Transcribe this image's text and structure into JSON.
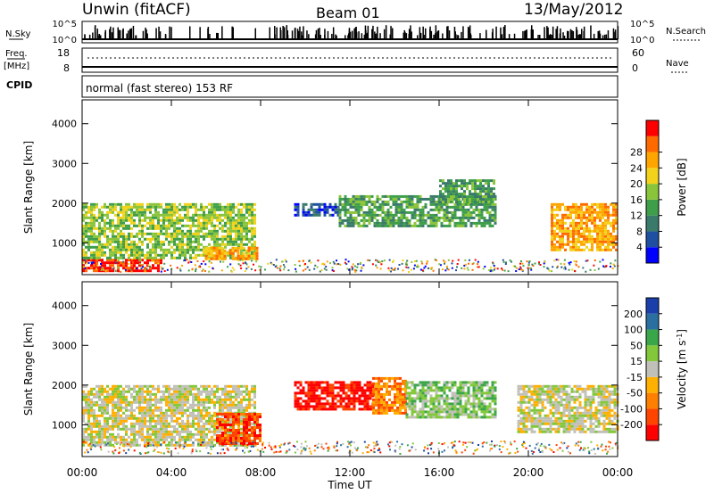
{
  "header": {
    "station": "Unwin (fitACF)",
    "beam": "Beam 01",
    "date": "13/May/2012"
  },
  "left_labels": {
    "nsky": "N.Sky",
    "freq": "Freq.",
    "freq_unit": "[MHz]",
    "cpid": "CPID"
  },
  "right_labels": {
    "nsearch": "N.Search",
    "nave": "Nave"
  },
  "strip_ticks": {
    "noise_top": "10^5",
    "noise_bottom": "10^0",
    "freq_top": "18",
    "freq_bottom": "8",
    "nave_top": "60",
    "nave_bottom": "0",
    "noise_right_top": "10^5",
    "noise_right_bottom": "10^0"
  },
  "cpid_text": "normal (fast stereo) 153 RF",
  "colors": {
    "power": [
      "#0000ff",
      "#1f4fa0",
      "#3a7a6b",
      "#3e9e4a",
      "#8ac43a",
      "#f2d21a",
      "#ffa500",
      "#ff6a00",
      "#ff0000"
    ],
    "velocity": [
      "#ff0000",
      "#ff4400",
      "#ff8000",
      "#ffb000",
      "#c0c0b8",
      "#82c83a",
      "#3aa64a",
      "#2a6fa0",
      "#1a3faa"
    ]
  },
  "chart_data": [
    {
      "type": "heatmap",
      "title": "",
      "xlabel": "Time UT",
      "ylabel": "Slant Range [km]",
      "x_ticks": [
        "00:00",
        "04:00",
        "08:00",
        "12:00",
        "16:00",
        "20:00",
        "00:00"
      ],
      "y_ticks": [
        "1000",
        "2000",
        "3000",
        "4000"
      ],
      "ylim": [
        200,
        4600
      ],
      "colorbar": {
        "label": "Power [dB]",
        "ticks": [
          "4",
          "8",
          "12",
          "16",
          "20",
          "24",
          "28"
        ],
        "range": [
          0,
          32
        ]
      },
      "regions": [
        {
          "t_start": 0.0,
          "t_end": 3.5,
          "r_low": 300,
          "r_high": 600,
          "level": 30
        },
        {
          "t_start": 0.0,
          "t_end": 7.8,
          "r_low": 600,
          "r_high": 2000,
          "level": 16
        },
        {
          "t_start": 5.5,
          "t_end": 7.8,
          "r_low": 600,
          "r_high": 900,
          "level": 22
        },
        {
          "t_start": 9.5,
          "t_end": 11.5,
          "r_low": 1700,
          "r_high": 2000,
          "level": 6
        },
        {
          "t_start": 11.5,
          "t_end": 18.5,
          "r_low": 1400,
          "r_high": 2200,
          "level": 14
        },
        {
          "t_start": 16.0,
          "t_end": 18.5,
          "r_low": 2000,
          "r_high": 2600,
          "level": 12
        },
        {
          "t_start": 21.0,
          "t_end": 24.0,
          "r_low": 800,
          "r_high": 2000,
          "level": 22
        }
      ]
    },
    {
      "type": "heatmap",
      "title": "",
      "xlabel": "Time UT",
      "ylabel": "Slant Range [km]",
      "x_ticks": [
        "00:00",
        "04:00",
        "08:00",
        "12:00",
        "16:00",
        "20:00",
        "00:00"
      ],
      "y_ticks": [
        "1000",
        "2000",
        "3000",
        "4000"
      ],
      "ylim": [
        200,
        4600
      ],
      "colorbar": {
        "label": "Velocity [m s^-1]",
        "ticks": [
          "200",
          "100",
          "50",
          "15",
          "-15",
          "-50",
          "-100",
          "-200"
        ],
        "range": [
          -250,
          250
        ]
      },
      "regions": [
        {
          "t_start": 0.0,
          "t_end": 7.8,
          "r_low": 500,
          "r_high": 2000,
          "level": 0
        },
        {
          "t_start": 6.0,
          "t_end": 8.0,
          "r_low": 500,
          "r_high": 1300,
          "level": -150
        },
        {
          "t_start": 9.5,
          "t_end": 13.0,
          "r_low": 1400,
          "r_high": 2100,
          "level": -220
        },
        {
          "t_start": 13.0,
          "t_end": 14.5,
          "r_low": 1300,
          "r_high": 2200,
          "level": -60
        },
        {
          "t_start": 14.5,
          "t_end": 18.5,
          "r_low": 1200,
          "r_high": 2100,
          "level": 40
        },
        {
          "t_start": 19.5,
          "t_end": 24.0,
          "r_low": 800,
          "r_high": 2000,
          "level": 0
        }
      ]
    }
  ]
}
